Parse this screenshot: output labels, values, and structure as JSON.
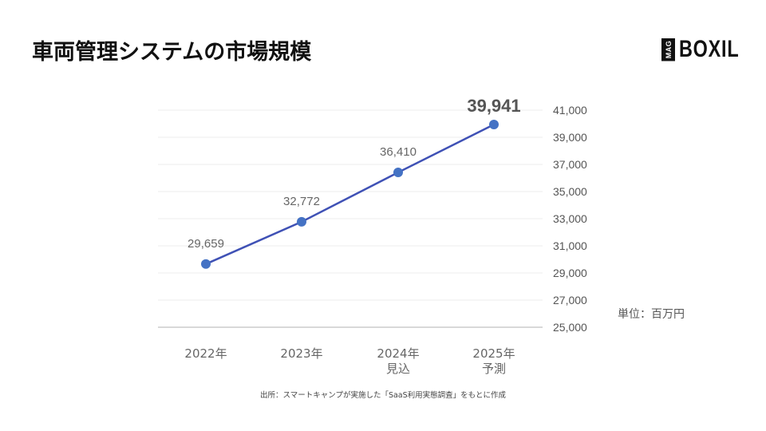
{
  "title": "車両管理システムの市場規模",
  "logo": {
    "badge": "MAG",
    "name": "BOXIL"
  },
  "unit_label": "単位：百万円",
  "source": "出所：スマートキャンプが実施した「SaaS利用実態調査」をもとに作成",
  "x_labels": [
    {
      "line1": "2022年",
      "line2": ""
    },
    {
      "line1": "2023年",
      "line2": ""
    },
    {
      "line1": "2024年",
      "line2": "見込"
    },
    {
      "line1": "2025年",
      "line2": "予測"
    }
  ],
  "colors": {
    "line": "#3f51b5",
    "point": "#4472c4",
    "grid": "#eeeeee",
    "axis": "#cccccc",
    "label": "#666666"
  },
  "chart_data": {
    "type": "line",
    "title": "車両管理システムの市場規模",
    "categories": [
      "2022年",
      "2023年",
      "2024年 見込",
      "2025年 予測"
    ],
    "series": [
      {
        "name": "市場規模",
        "values": [
          29659,
          32772,
          36410,
          39941
        ]
      }
    ],
    "data_labels": [
      "29,659",
      "32,772",
      "36,410",
      "39,941"
    ],
    "xlabel": "",
    "ylabel": "単位：百万円",
    "ylim": [
      25000,
      41000
    ],
    "y_ticks": [
      "25,000",
      "27,000",
      "29,000",
      "31,000",
      "33,000",
      "35,000",
      "37,000",
      "39,000",
      "41,000"
    ],
    "y_axis_position": "right",
    "grid": true,
    "legend": "none"
  }
}
